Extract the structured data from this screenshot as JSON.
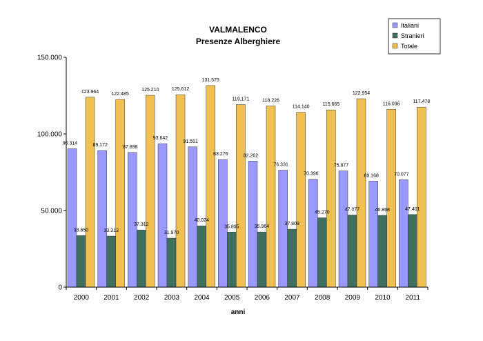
{
  "chart_data": {
    "type": "bar",
    "title": "VALMALENCO",
    "subtitle": "Presenze Alberghiere",
    "xlabel": "anni",
    "ylabel": "",
    "ylim": [
      0,
      150000
    ],
    "yticks": [
      0,
      50000,
      100000,
      150000
    ],
    "ytick_labels": [
      "0",
      "50.000",
      "100.000",
      "150.000"
    ],
    "grid": false,
    "legend_position": "top-right",
    "categories": [
      "2000",
      "2001",
      "2002",
      "2003",
      "2004",
      "2005",
      "2006",
      "2007",
      "2008",
      "2009",
      "2010",
      "2011"
    ],
    "series": [
      {
        "name": "Italiani",
        "color": "#9999ff",
        "values": [
          90314,
          89172,
          87898,
          93642,
          91551,
          83276,
          82262,
          76331,
          70396,
          75877,
          69168,
          70077
        ],
        "labels": [
          "90.314",
          "89.172",
          "87.898",
          "93.642",
          "91.551",
          "83.276",
          "82.262",
          "76.331",
          "70.396",
          "75.877",
          "69.168",
          "70.077"
        ]
      },
      {
        "name": "Stranieri",
        "color": "#3f6f5f",
        "values": [
          33650,
          33313,
          37312,
          31970,
          40024,
          35895,
          35964,
          37809,
          45270,
          47077,
          46868,
          47401
        ],
        "labels": [
          "33.650",
          "33.313",
          "37.312",
          "31.970",
          "40.024",
          "35.895",
          "35.964",
          "37.809",
          "45.270",
          "47.077",
          "46.868",
          "47.401"
        ]
      },
      {
        "name": "Totale",
        "color": "#f0c050",
        "values": [
          123964,
          122485,
          125210,
          125612,
          131575,
          119171,
          118226,
          114140,
          115665,
          122954,
          116036,
          117478
        ],
        "labels": [
          "123.964",
          "122.485",
          "125.210",
          "125.612",
          "131.575",
          "119.171",
          "118.226",
          "114.140",
          "115.665",
          "122.954",
          "116.036",
          "117.478"
        ]
      }
    ]
  }
}
